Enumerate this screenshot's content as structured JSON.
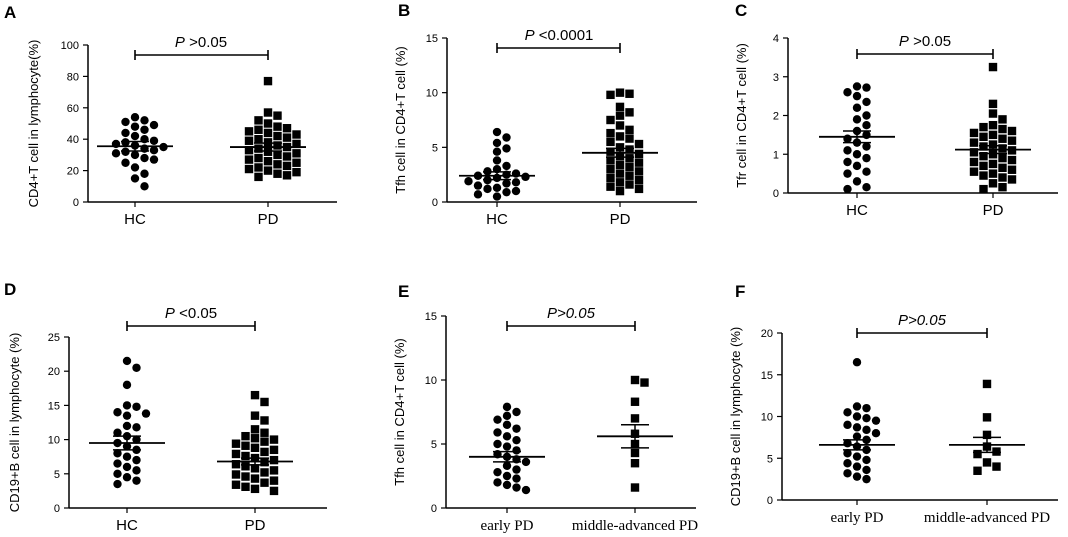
{
  "figure": {
    "title": ""
  },
  "chart_data": [
    {
      "panel": "A",
      "type": "scatter",
      "ylabel": "CD4+T cell in lymphocyte(%)",
      "ylim": [
        0,
        100
      ],
      "yticks": [
        0,
        20,
        40,
        60,
        80,
        100
      ],
      "categories": [
        "HC",
        "PD"
      ],
      "pvalue": {
        "italic": "P",
        "text": " >0.05"
      },
      "series": [
        {
          "name": "HC",
          "marker": "circle",
          "mean": 35.5,
          "sem": 3,
          "values": [
            54,
            52,
            51,
            49,
            48,
            46,
            44,
            42,
            40,
            39,
            38,
            37,
            36,
            35,
            34,
            33,
            32,
            31,
            30,
            28,
            27,
            25,
            22,
            18,
            15,
            10
          ]
        },
        {
          "name": "PD",
          "marker": "square",
          "mean": 35,
          "sem": 2.5,
          "values": [
            77,
            57,
            55,
            52,
            50,
            48,
            47,
            46,
            45,
            44,
            43,
            42,
            41,
            40,
            39,
            38,
            37,
            36,
            35,
            34,
            33,
            32,
            31,
            30,
            29,
            28,
            27,
            26,
            25,
            24,
            23,
            22,
            21,
            20,
            19,
            18,
            17,
            16
          ]
        }
      ]
    },
    {
      "panel": "B",
      "type": "scatter",
      "ylabel": "Tfh cell in CD4+T cell (%)",
      "ylim": [
        0,
        15
      ],
      "yticks": [
        0,
        5,
        10,
        15
      ],
      "categories": [
        "HC",
        "PD"
      ],
      "pvalue": {
        "italic": "P",
        "text": " <0.0001"
      },
      "series": [
        {
          "name": "HC",
          "marker": "circle",
          "mean": 2.4,
          "sem": 0.35,
          "values": [
            6.4,
            5.9,
            5.4,
            4.9,
            4.6,
            3.8,
            3.3,
            3.0,
            2.8,
            2.6,
            2.5,
            2.4,
            2.3,
            2.2,
            2.0,
            1.9,
            1.8,
            1.7,
            1.5,
            1.3,
            1.2,
            1.0,
            0.9,
            0.7,
            0.5
          ]
        },
        {
          "name": "PD",
          "marker": "square",
          "mean": 4.5,
          "sem": 0.4,
          "values": [
            10.0,
            9.9,
            9.8,
            8.7,
            8.2,
            7.9,
            7.5,
            7.0,
            6.6,
            6.3,
            6.0,
            5.8,
            5.5,
            5.3,
            5.0,
            4.8,
            4.6,
            4.4,
            4.2,
            4.0,
            3.8,
            3.6,
            3.4,
            3.2,
            3.0,
            2.8,
            2.6,
            2.4,
            2.2,
            2.0,
            1.8,
            1.6,
            1.4,
            1.2,
            1.0
          ]
        }
      ]
    },
    {
      "panel": "C",
      "type": "scatter",
      "ylabel": "Tfr cell in CD4+T cell (%)",
      "ylim": [
        0,
        4
      ],
      "yticks": [
        0,
        1,
        2,
        3,
        4
      ],
      "categories": [
        "HC",
        "PD"
      ],
      "pvalue": {
        "italic": "P",
        "text": " >0.05"
      },
      "series": [
        {
          "name": "HC",
          "marker": "circle",
          "mean": 1.45,
          "sem": 0.15,
          "values": [
            2.75,
            2.72,
            2.6,
            2.5,
            2.35,
            2.2,
            2.0,
            1.9,
            1.75,
            1.6,
            1.5,
            1.4,
            1.3,
            1.2,
            1.1,
            1.0,
            0.9,
            0.8,
            0.7,
            0.55,
            0.5,
            0.3,
            0.15,
            0.1
          ]
        },
        {
          "name": "PD",
          "marker": "square",
          "mean": 1.12,
          "sem": 0.1,
          "values": [
            3.25,
            2.3,
            2.05,
            1.9,
            1.75,
            1.7,
            1.65,
            1.6,
            1.55,
            1.5,
            1.45,
            1.4,
            1.35,
            1.3,
            1.25,
            1.2,
            1.15,
            1.1,
            1.05,
            1.0,
            0.95,
            0.9,
            0.85,
            0.8,
            0.75,
            0.7,
            0.65,
            0.6,
            0.55,
            0.5,
            0.45,
            0.4,
            0.35,
            0.25,
            0.15,
            0.1
          ]
        }
      ]
    },
    {
      "panel": "D",
      "type": "scatter",
      "ylabel": "CD19+B cell in lymphocyte (%)",
      "ylim": [
        0,
        25
      ],
      "yticks": [
        0,
        5,
        10,
        15,
        20,
        25
      ],
      "categories": [
        "HC",
        "PD"
      ],
      "pvalue": {
        "italic": "P",
        "text": " <0.05"
      },
      "series": [
        {
          "name": "HC",
          "marker": "circle",
          "mean": 9.5,
          "sem": 1,
          "values": [
            21.5,
            20.5,
            18.0,
            15.0,
            14.8,
            14.0,
            13.8,
            13.5,
            12.0,
            11.8,
            11.0,
            10.5,
            10.0,
            9.5,
            9.0,
            8.5,
            8.0,
            7.5,
            7.0,
            6.5,
            6.0,
            5.5,
            5.0,
            4.5,
            4.0,
            3.5
          ]
        },
        {
          "name": "PD",
          "marker": "square",
          "mean": 6.8,
          "sem": 0.5,
          "values": [
            16.5,
            15.5,
            13.5,
            12.8,
            11.5,
            11.0,
            10.5,
            10.2,
            10.0,
            9.7,
            9.4,
            9.1,
            8.8,
            8.5,
            8.2,
            7.9,
            7.6,
            7.3,
            7.0,
            6.7,
            6.4,
            6.1,
            5.8,
            5.5,
            5.2,
            4.9,
            4.6,
            4.3,
            4.0,
            3.7,
            3.4,
            3.1,
            2.8,
            2.5
          ]
        }
      ]
    },
    {
      "panel": "E",
      "type": "scatter",
      "ylabel": "Tfh cell in CD4+T cell (%)",
      "ylim": [
        0,
        15
      ],
      "yticks": [
        0,
        5,
        10,
        15
      ],
      "categories": [
        "early PD",
        "middle-advanced PD"
      ],
      "pvalue": {
        "italic": "",
        "text": "P>0.05"
      },
      "series": [
        {
          "name": "early PD",
          "marker": "circle",
          "mean": 4.0,
          "sem": 0.4,
          "values": [
            7.9,
            7.5,
            7.2,
            6.9,
            6.5,
            6.2,
            5.9,
            5.6,
            5.3,
            5.0,
            4.8,
            4.5,
            4.2,
            4.0,
            3.8,
            3.6,
            3.3,
            3.0,
            2.8,
            2.5,
            2.3,
            2.0,
            1.8,
            1.6,
            1.4
          ]
        },
        {
          "name": "middle-advanced PD",
          "marker": "square",
          "mean": 5.6,
          "sem": 0.9,
          "values": [
            10.0,
            9.8,
            8.3,
            7.0,
            5.8,
            5.0,
            4.3,
            3.5,
            1.6
          ]
        }
      ]
    },
    {
      "panel": "F",
      "type": "scatter",
      "ylabel": "CD19+B cell in lymphocyte (%)",
      "ylim": [
        0,
        20
      ],
      "yticks": [
        0,
        5,
        10,
        15,
        20
      ],
      "categories": [
        "early PD",
        "middle-advanced PD"
      ],
      "pvalue": {
        "italic": "",
        "text": "P>0.05"
      },
      "series": [
        {
          "name": "early PD",
          "marker": "circle",
          "mean": 6.6,
          "sem": 0.6,
          "values": [
            16.5,
            11.2,
            11.0,
            10.5,
            10.0,
            9.8,
            9.5,
            9.0,
            8.7,
            8.4,
            8.0,
            7.6,
            7.2,
            6.8,
            6.4,
            6.0,
            5.6,
            5.2,
            4.8,
            4.4,
            4.0,
            3.6,
            3.2,
            2.8,
            2.5
          ]
        },
        {
          "name": "middle-advanced PD",
          "marker": "square",
          "mean": 6.6,
          "sem": 0.9,
          "values": [
            13.9,
            9.9,
            7.8,
            6.4,
            5.8,
            5.5,
            4.5,
            4.0,
            3.5
          ]
        }
      ]
    }
  ]
}
